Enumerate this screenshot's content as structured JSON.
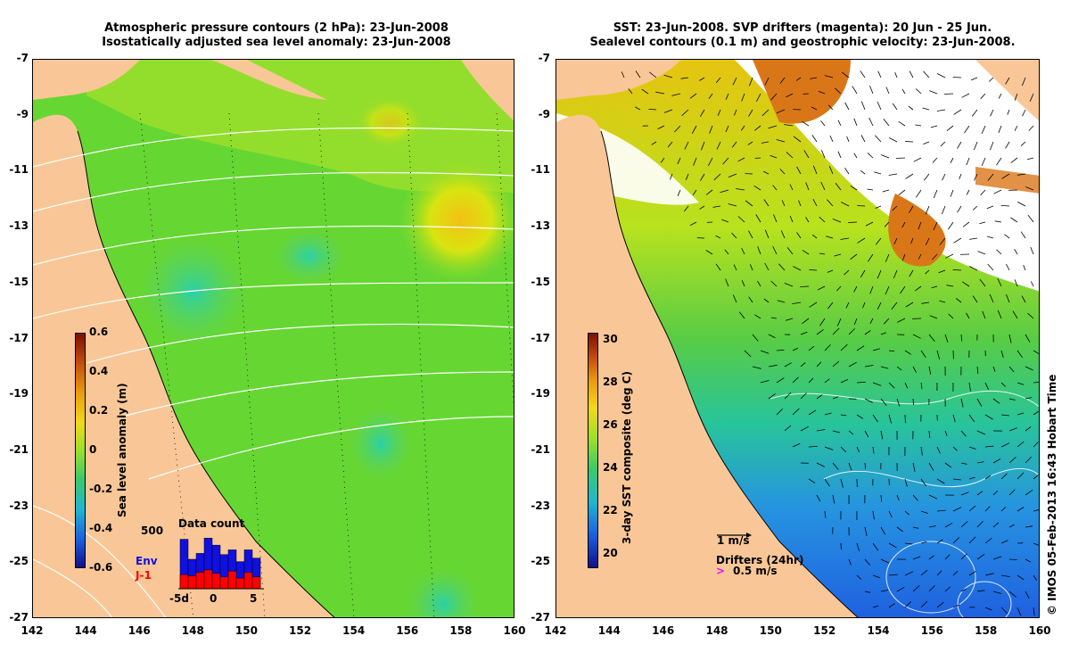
{
  "left_panel": {
    "title_line1": "Atmospheric pressure contours (2 hPa): 23-Jun-2008",
    "title_line2": "Isostatically adjusted sea level anomaly: 23-Jun-2008",
    "colorbar": {
      "label": "Sea level anomaly (m)",
      "ticks": [
        "0.6",
        "0.4",
        "0.2",
        "0",
        "-0.2",
        "-0.4",
        "-0.6"
      ],
      "range": [
        -0.6,
        0.6
      ]
    },
    "histogram": {
      "title": "Data count",
      "ymax_label": "500",
      "legend_env": "Env",
      "legend_j1": "J-1",
      "xticks": [
        "-5d",
        "0",
        "5"
      ],
      "env_color": "#1010e0",
      "j1_color": "#ff0000",
      "env_values": [
        420,
        250,
        300,
        430,
        370,
        290,
        330,
        230,
        330,
        260
      ],
      "j1_values": [
        120,
        110,
        140,
        160,
        130,
        100,
        150,
        90,
        140,
        100
      ]
    }
  },
  "right_panel": {
    "title_line1": "SST: 23-Jun-2008. SVP drifters (magenta): 20 Jun - 25 Jun.",
    "title_line2": "Sealevel contours (0.1 m) and geostrophic velocity: 23-Jun-2008.",
    "colorbar": {
      "label": "3-day SST composite (deg C)",
      "ticks": [
        "30",
        "28",
        "26",
        "24",
        "22",
        "20"
      ],
      "range": [
        19,
        30
      ]
    },
    "velocity_scale_label": "1 m/s",
    "drifters_label": "Drifters (24hr)",
    "drifters_scale_label": "0.5 m/s",
    "drifter_color": "#ff00ff"
  },
  "axes": {
    "y_ticks": [
      "-7",
      "-9",
      "-11",
      "-13",
      "-15",
      "-17",
      "-19",
      "-21",
      "-23",
      "-25",
      "-27"
    ],
    "x_ticks": [
      "142",
      "144",
      "146",
      "148",
      "150",
      "152",
      "154",
      "156",
      "158",
      "160"
    ],
    "lon_range": [
      142,
      160
    ],
    "lat_range": [
      -27,
      -7
    ]
  },
  "credit": "© IMOS 05-Feb-2013 16:43 Hobart Time",
  "colors": {
    "land": "#f9c797",
    "ocean_green": "#66d633",
    "ocean_cyan": "#29c9a0",
    "ocean_yellow": "#d7e60f",
    "sst_blue": "#1f74e6",
    "sst_cyan": "#23c3c3",
    "sst_orange": "#d97718"
  }
}
